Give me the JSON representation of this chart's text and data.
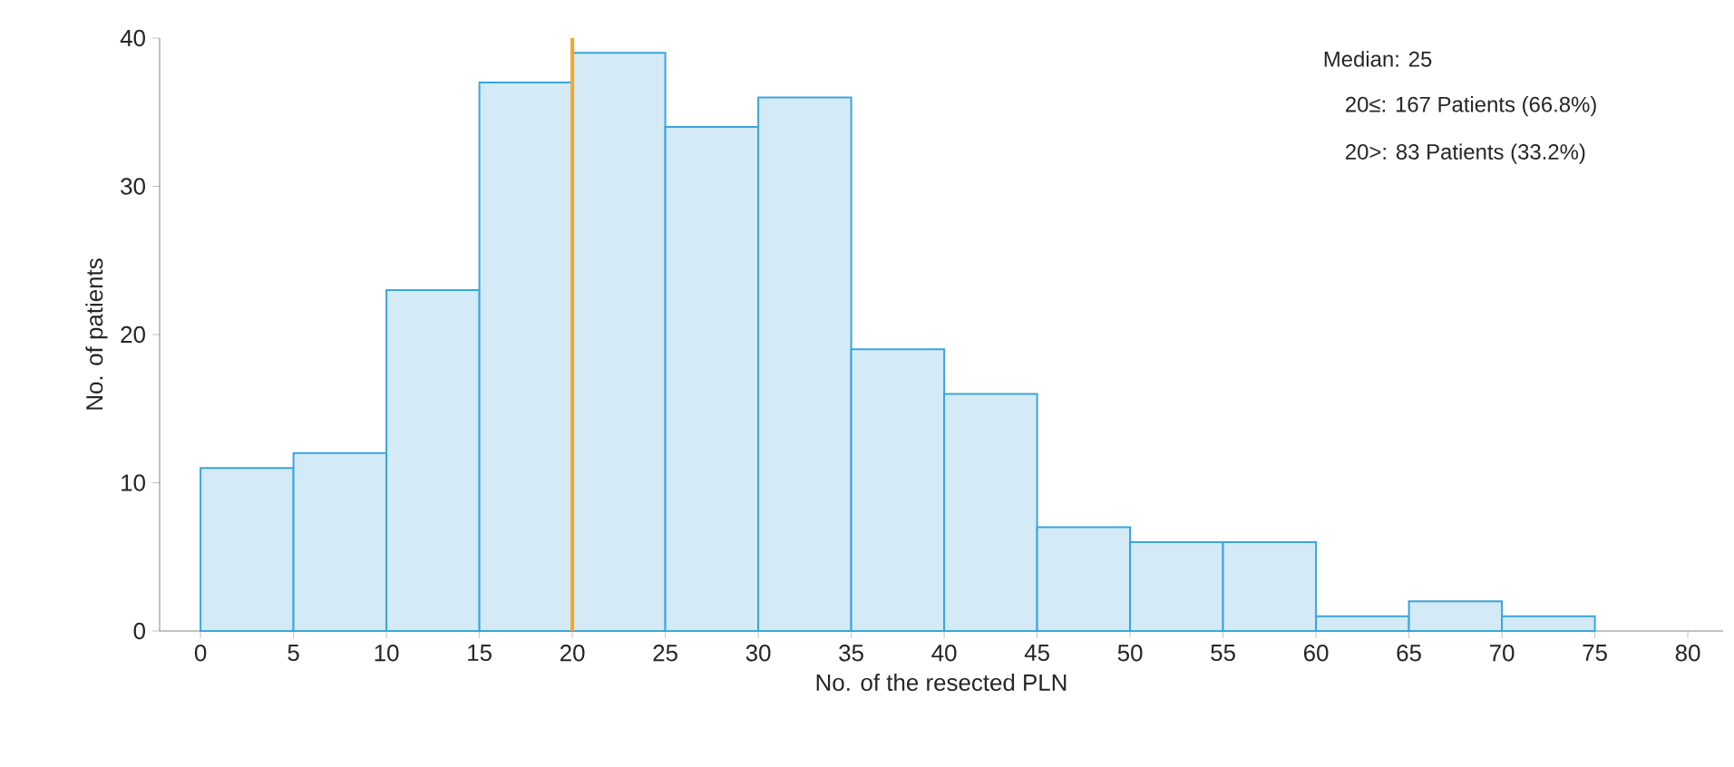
{
  "chart_data": {
    "type": "histogram",
    "xlabel": "No. of the resected PLN",
    "ylabel": "No. of patients",
    "bins": [
      0,
      5,
      10,
      15,
      20,
      25,
      30,
      35,
      40,
      45,
      50,
      55,
      60,
      65,
      70,
      75
    ],
    "values": [
      11,
      12,
      23,
      37,
      39,
      34,
      36,
      19,
      16,
      7,
      6,
      6,
      1,
      2,
      1
    ],
    "color": "#d4eaf6",
    "xlim": [
      -2.2,
      81.9
    ],
    "xticks": [
      0,
      5,
      10,
      15,
      20,
      25,
      30,
      35,
      40,
      45,
      50,
      55,
      60,
      65,
      70,
      75,
      80
    ],
    "ylim": [
      0,
      40
    ],
    "yticks": [
      0,
      10,
      20,
      30,
      40
    ],
    "ref_lines": [
      {
        "axis": "x",
        "value": 20,
        "color": "#f5a623"
      }
    ],
    "annotations": [
      "Median: 25",
      "20≤: 167 Patients (66.8%)",
      "20>: 83 Patients (33.2%)"
    ]
  }
}
